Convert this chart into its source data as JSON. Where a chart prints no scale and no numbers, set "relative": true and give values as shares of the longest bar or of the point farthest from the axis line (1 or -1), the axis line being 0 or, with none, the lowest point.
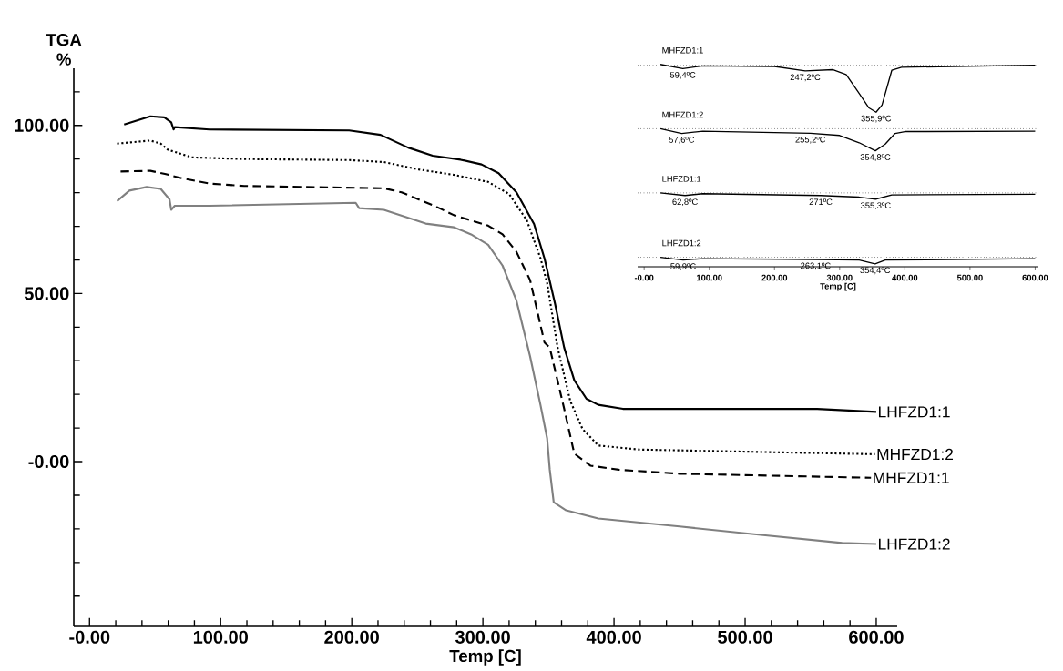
{
  "chart_data": [
    {
      "type": "line",
      "xlabel": "Temp  [C]",
      "ylabel": "TGA %",
      "xlim": [
        -12,
        616
      ],
      "ylim": [
        -49,
        117
      ],
      "xticks": [
        {
          "value": 0,
          "label": "-0.00"
        },
        {
          "value": 20,
          "label": null
        },
        {
          "value": 40,
          "label": null
        },
        {
          "value": 60,
          "label": null
        },
        {
          "value": 80,
          "label": null
        },
        {
          "value": 100,
          "label": "100.00"
        },
        {
          "value": 120,
          "label": null
        },
        {
          "value": 140,
          "label": null
        },
        {
          "value": 160,
          "label": null
        },
        {
          "value": 180,
          "label": null
        },
        {
          "value": 200,
          "label": "200.00"
        },
        {
          "value": 220,
          "label": null
        },
        {
          "value": 240,
          "label": null
        },
        {
          "value": 260,
          "label": null
        },
        {
          "value": 280,
          "label": null
        },
        {
          "value": 300,
          "label": "300.00"
        },
        {
          "value": 320,
          "label": null
        },
        {
          "value": 340,
          "label": null
        },
        {
          "value": 360,
          "label": null
        },
        {
          "value": 380,
          "label": null
        },
        {
          "value": 400,
          "label": "400.00"
        },
        {
          "value": 420,
          "label": null
        },
        {
          "value": 440,
          "label": null
        },
        {
          "value": 460,
          "label": null
        },
        {
          "value": 480,
          "label": null
        },
        {
          "value": 500,
          "label": "500.00"
        },
        {
          "value": 520,
          "label": null
        },
        {
          "value": 540,
          "label": null
        },
        {
          "value": 560,
          "label": null
        },
        {
          "value": 580,
          "label": null
        },
        {
          "value": 600,
          "label": "600.00"
        }
      ],
      "yticks": [
        {
          "value": -40,
          "label": null
        },
        {
          "value": -30,
          "label": null
        },
        {
          "value": -20,
          "label": null
        },
        {
          "value": -10,
          "label": null
        },
        {
          "value": 0,
          "label": "-0.00"
        },
        {
          "value": 10,
          "label": null
        },
        {
          "value": 20,
          "label": null
        },
        {
          "value": 30,
          "label": null
        },
        {
          "value": 40,
          "label": null
        },
        {
          "value": 50,
          "label": "50.00"
        },
        {
          "value": 60,
          "label": null
        },
        {
          "value": 70,
          "label": null
        },
        {
          "value": 80,
          "label": null
        },
        {
          "value": 90,
          "label": null
        },
        {
          "value": 100,
          "label": "100.00"
        },
        {
          "value": 110,
          "label": null
        }
      ],
      "series": [
        {
          "name": "LHFZD1:1",
          "color": "#000000",
          "line_style": "solid",
          "x": [
            26.4,
            46.4,
            57,
            62.3,
            64.1,
            65,
            91.5,
            198,
            222,
            243,
            261.7,
            283,
            299,
            312,
            325.6,
            339,
            347,
            355,
            362,
            369.7,
            379,
            388,
            406.8,
            555,
            600
          ],
          "values": [
            100.3,
            102.7,
            102.4,
            100.9,
            98.8,
            99.5,
            98.8,
            98.5,
            97.2,
            93.4,
            91,
            89.8,
            88.4,
            85.8,
            80.1,
            70.7,
            60.4,
            47,
            33.9,
            24.2,
            18.7,
            16.9,
            15.7,
            15.7,
            14.8
          ]
        },
        {
          "name": "MHFZD1:2",
          "color": "#000000",
          "line_style": "dotted",
          "x": [
            21,
            46.4,
            54.3,
            59.6,
            78,
            118,
            198,
            224.5,
            251,
            278,
            304,
            320,
            333.5,
            344,
            349,
            357,
            366.6,
            376,
            388,
            419,
            599
          ],
          "values": [
            94.6,
            95.5,
            94.6,
            92.8,
            90.5,
            90,
            89.7,
            89.1,
            86.9,
            85.3,
            83.2,
            79.6,
            71.8,
            60.4,
            53.1,
            33.9,
            18.1,
            9.7,
            4.8,
            3.6,
            2.2
          ]
        },
        {
          "name": "MHFZD1:1",
          "color": "#000000",
          "line_style": "dashed",
          "x": [
            23.7,
            46.4,
            58.3,
            70.3,
            91.5,
            118,
            224.5,
            238,
            264,
            278,
            304,
            315,
            325.6,
            336,
            347,
            351,
            362,
            369.7,
            382,
            403.7,
            450,
            596
          ],
          "values": [
            86.3,
            86.5,
            85.5,
            84.3,
            82.7,
            82,
            81.3,
            80.1,
            75.9,
            73.3,
            70.2,
            67.6,
            62.4,
            54,
            35.4,
            33.9,
            15.7,
            2.4,
            -1.2,
            -2.4,
            -3.6,
            -4.8
          ]
        },
        {
          "name": "LHFZD1:2",
          "color": "#808080",
          "line_style": "solid",
          "x": [
            21,
            30.4,
            43.6,
            54.3,
            61,
            62.3,
            65,
            91.5,
            203,
            205.6,
            224.5,
            256.4,
            278,
            291,
            304,
            315,
            325.6,
            336,
            344,
            349,
            351,
            354,
            363.5,
            388,
            450,
            512,
            574,
            600
          ],
          "values": [
            77.5,
            80.6,
            81.7,
            81.1,
            78,
            74.9,
            76.1,
            76.1,
            77,
            75.4,
            74.9,
            70.8,
            69.7,
            67.6,
            64.5,
            58.3,
            47.9,
            31.3,
            16.7,
            6.9,
            -2.4,
            -12.1,
            -14.5,
            -16.9,
            -19.3,
            -21.8,
            -24.2,
            -24.5
          ]
        }
      ]
    },
    {
      "type": "line",
      "relative": true,
      "xlabel": "Temp  [C]",
      "xlim": [
        -10,
        605
      ],
      "xticks": [
        {
          "value": 0,
          "label": "-0.00"
        },
        {
          "value": 100,
          "label": "100.00"
        },
        {
          "value": 200,
          "label": "200.00"
        },
        {
          "value": 300,
          "label": "300.00"
        },
        {
          "value": 400,
          "label": "400.00"
        },
        {
          "value": 500,
          "label": "500.00"
        },
        {
          "value": 600,
          "label": "600.00"
        }
      ],
      "series": [
        {
          "name": "MHFZD1:1",
          "color": "#000000",
          "x": [
            25,
            59.4,
            90,
            200,
            247.2,
            290,
            310,
            330,
            345,
            355.9,
            365,
            380,
            395,
            600
          ],
          "values": [
            1.0,
            0.979,
            0.993,
            0.99,
            0.968,
            0.974,
            0.95,
            0.857,
            0.785,
            0.764,
            0.799,
            0.971,
            0.986,
            0.996
          ]
        },
        {
          "name": "MHFZD1:2",
          "color": "#000000",
          "x": [
            25,
            57.6,
            90,
            255.2,
            300,
            330,
            354.8,
            370,
            385,
            400,
            600
          ],
          "values": [
            0.682,
            0.659,
            0.67,
            0.66,
            0.649,
            0.613,
            0.573,
            0.606,
            0.659,
            0.668,
            0.67
          ]
        },
        {
          "name": "LHFZD1:1",
          "color": "#000000",
          "x": [
            25,
            62.8,
            90,
            271,
            330,
            355.3,
            380,
            600
          ],
          "values": [
            0.365,
            0.352,
            0.361,
            0.352,
            0.344,
            0.334,
            0.355,
            0.358
          ]
        },
        {
          "name": "LHFZD1:2",
          "color": "#000000",
          "x": [
            25,
            59.9,
            90,
            263.1,
            330,
            354.4,
            370,
            600
          ],
          "values": [
            0.047,
            0.033,
            0.04,
            0.036,
            0.033,
            0.014,
            0.033,
            0.04
          ]
        }
      ],
      "ref_lines": [
        {
          "axis": "y",
          "value": 0.996,
          "line_style": "dotted"
        },
        {
          "axis": "y",
          "value": 0.682,
          "line_style": "dotted"
        },
        {
          "axis": "y",
          "value": 0.365,
          "line_style": "dotted"
        },
        {
          "axis": "y",
          "value": 0.047,
          "line_style": "dotted"
        }
      ],
      "annotations": [
        {
          "text": "59,4ºC",
          "x": 59.4,
          "y": 0.979
        },
        {
          "text": "247,2ºC",
          "x": 247.2,
          "y": 0.968
        },
        {
          "text": "355,9ºC",
          "x": 355.9,
          "y": 0.764
        },
        {
          "text": "57,6ºC",
          "x": 57.6,
          "y": 0.659
        },
        {
          "text": "255,2ºC",
          "x": 255.2,
          "y": 0.66
        },
        {
          "text": "354,8ºC",
          "x": 354.8,
          "y": 0.573
        },
        {
          "text": "62,8ºC",
          "x": 62.8,
          "y": 0.352
        },
        {
          "text": "271ºC",
          "x": 271,
          "y": 0.352
        },
        {
          "text": "355,3ºC",
          "x": 355.3,
          "y": 0.334
        },
        {
          "text": "59,9ºC",
          "x": 59.9,
          "y": 0.033
        },
        {
          "text": "263,1ºC",
          "x": 263.1,
          "y": 0.036
        },
        {
          "text": "354,4ºC",
          "x": 354.4,
          "y": 0.014
        }
      ]
    }
  ]
}
